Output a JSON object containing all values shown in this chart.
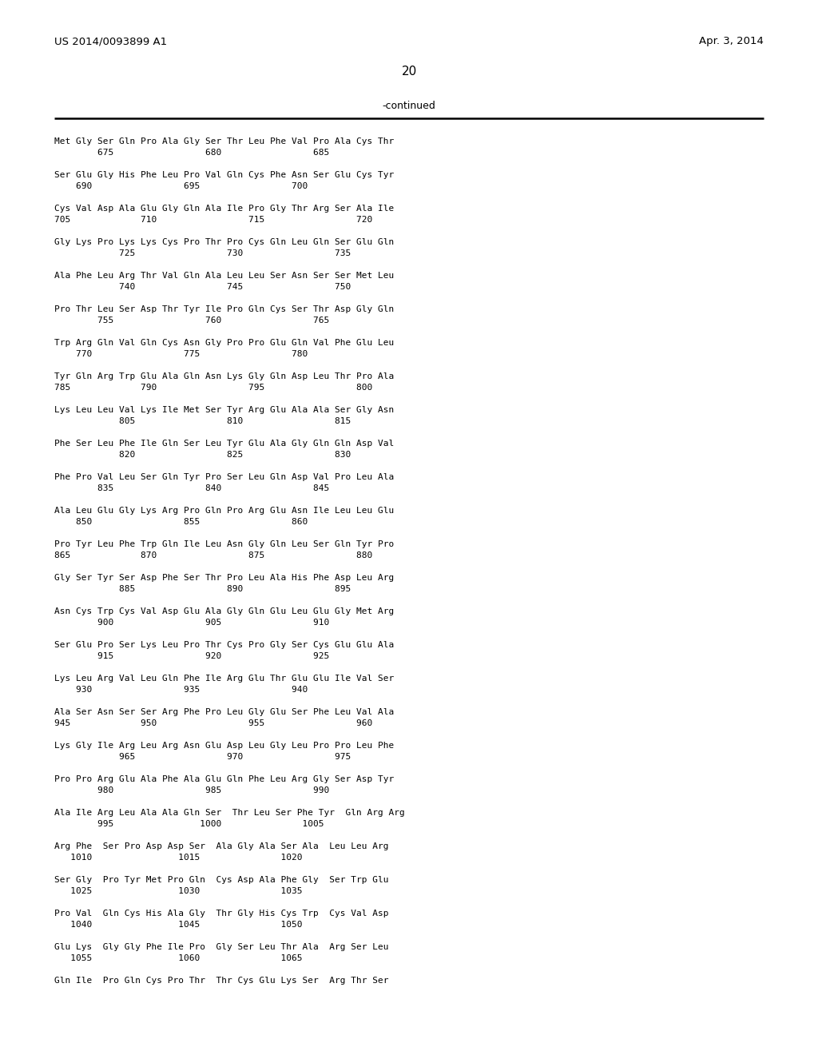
{
  "header_left": "US 2014/0093899 A1",
  "header_right": "Apr. 3, 2014",
  "page_number": "20",
  "continued_label": "-continued",
  "background_color": "#ffffff",
  "text_color": "#000000",
  "seq_blocks": [
    {
      "aa": "Met Gly Ser Gln Pro Ala Gly Ser Thr Leu Phe Val Pro Ala Cys Thr",
      "nums": "        675                 680                 685"
    },
    {
      "aa": "Ser Glu Gly His Phe Leu Pro Val Gln Cys Phe Asn Ser Glu Cys Tyr",
      "nums": "    690                 695                 700"
    },
    {
      "aa": "Cys Val Asp Ala Glu Gly Gln Ala Ile Pro Gly Thr Arg Ser Ala Ile",
      "nums": "705             710                 715                 720"
    },
    {
      "aa": "Gly Lys Pro Lys Lys Cys Pro Thr Pro Cys Gln Leu Gln Ser Glu Gln",
      "nums": "            725                 730                 735"
    },
    {
      "aa": "Ala Phe Leu Arg Thr Val Gln Ala Leu Leu Ser Asn Ser Ser Met Leu",
      "nums": "            740                 745                 750"
    },
    {
      "aa": "Pro Thr Leu Ser Asp Thr Tyr Ile Pro Gln Cys Ser Thr Asp Gly Gln",
      "nums": "        755                 760                 765"
    },
    {
      "aa": "Trp Arg Gln Val Gln Cys Asn Gly Pro Pro Glu Gln Val Phe Glu Leu",
      "nums": "    770                 775                 780"
    },
    {
      "aa": "Tyr Gln Arg Trp Glu Ala Gln Asn Lys Gly Gln Asp Leu Thr Pro Ala",
      "nums": "785             790                 795                 800"
    },
    {
      "aa": "Lys Leu Leu Val Lys Ile Met Ser Tyr Arg Glu Ala Ala Ser Gly Asn",
      "nums": "            805                 810                 815"
    },
    {
      "aa": "Phe Ser Leu Phe Ile Gln Ser Leu Tyr Glu Ala Gly Gln Gln Asp Val",
      "nums": "            820                 825                 830"
    },
    {
      "aa": "Phe Pro Val Leu Ser Gln Tyr Pro Ser Leu Gln Asp Val Pro Leu Ala",
      "nums": "        835                 840                 845"
    },
    {
      "aa": "Ala Leu Glu Gly Lys Arg Pro Gln Pro Arg Glu Asn Ile Leu Leu Glu",
      "nums": "    850                 855                 860"
    },
    {
      "aa": "Pro Tyr Leu Phe Trp Gln Ile Leu Asn Gly Gln Leu Ser Gln Tyr Pro",
      "nums": "865             870                 875                 880"
    },
    {
      "aa": "Gly Ser Tyr Ser Asp Phe Ser Thr Pro Leu Ala His Phe Asp Leu Arg",
      "nums": "            885                 890                 895"
    },
    {
      "aa": "Asn Cys Trp Cys Val Asp Glu Ala Gly Gln Glu Leu Glu Gly Met Arg",
      "nums": "        900                 905                 910"
    },
    {
      "aa": "Ser Glu Pro Ser Lys Leu Pro Thr Cys Pro Gly Ser Cys Glu Glu Ala",
      "nums": "        915                 920                 925"
    },
    {
      "aa": "Lys Leu Arg Val Leu Gln Phe Ile Arg Glu Thr Glu Glu Ile Val Ser",
      "nums": "    930                 935                 940"
    },
    {
      "aa": "Ala Ser Asn Ser Ser Arg Phe Pro Leu Gly Glu Ser Phe Leu Val Ala",
      "nums": "945             950                 955                 960"
    },
    {
      "aa": "Lys Gly Ile Arg Leu Arg Asn Glu Asp Leu Gly Leu Pro Pro Leu Phe",
      "nums": "            965                 970                 975"
    },
    {
      "aa": "Pro Pro Arg Glu Ala Phe Ala Glu Gln Phe Leu Arg Gly Ser Asp Tyr",
      "nums": "        980                 985                 990"
    },
    {
      "aa": "Ala Ile Arg Leu Ala Ala Gln Ser  Thr Leu Ser Phe Tyr  Gln Arg Arg",
      "nums": "        995                1000               1005"
    },
    {
      "aa": "Arg Phe  Ser Pro Asp Asp Ser  Ala Gly Ala Ser Ala  Leu Leu Arg",
      "nums": "   1010                1015               1020"
    },
    {
      "aa": "Ser Gly  Pro Tyr Met Pro Gln  Cys Asp Ala Phe Gly  Ser Trp Glu",
      "nums": "   1025                1030               1035"
    },
    {
      "aa": "Pro Val  Gln Cys His Ala Gly  Thr Gly His Cys Trp  Cys Val Asp",
      "nums": "   1040                1045               1050"
    },
    {
      "aa": "Glu Lys  Gly Gly Phe Ile Pro  Gly Ser Leu Thr Ala  Arg Ser Leu",
      "nums": "   1055                1060               1065"
    },
    {
      "aa": "Gln Ile  Pro Gln Cys Pro Thr  Thr Cys Glu Lys Ser  Arg Thr Ser",
      "nums": ""
    }
  ]
}
